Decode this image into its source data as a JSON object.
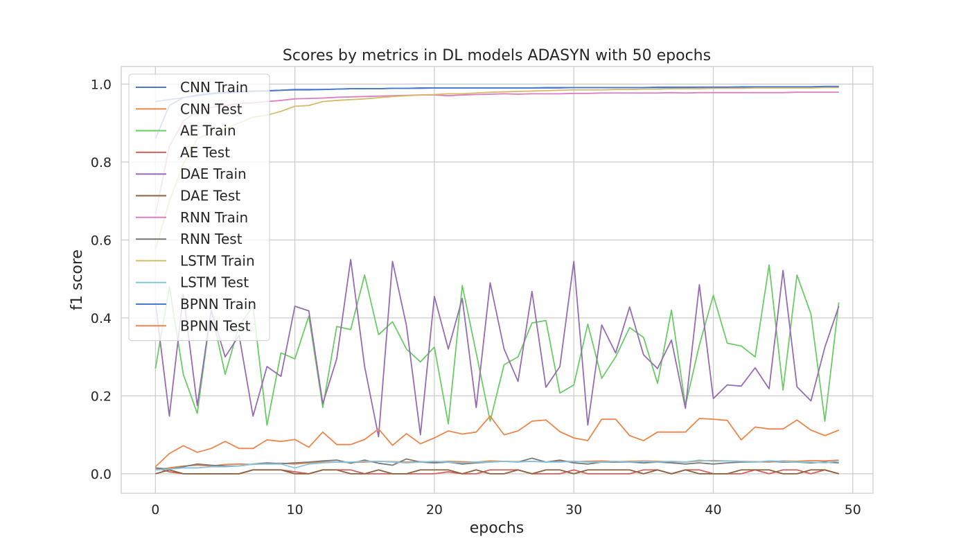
{
  "chart_data": {
    "type": "line",
    "title": "Scores by metrics in DL models ADASYN with 50 epochs",
    "xlabel": "epochs",
    "ylabel": "f1 score",
    "xlim": [
      -2.45,
      51.45
    ],
    "ylim": [
      -0.05,
      1.045
    ],
    "xticks": [
      0,
      10,
      20,
      30,
      40,
      50
    ],
    "xtick_labels": [
      "0",
      "10",
      "20",
      "30",
      "40",
      "50"
    ],
    "yticks": [
      0.0,
      0.2,
      0.4,
      0.6,
      0.8,
      1.0
    ],
    "ytick_labels": [
      "0.0",
      "0.2",
      "0.4",
      "0.6",
      "0.8",
      "1.0"
    ],
    "grid": true,
    "legend_position": "upper-left",
    "x": [
      0,
      1,
      2,
      3,
      4,
      5,
      6,
      7,
      8,
      9,
      10,
      11,
      12,
      13,
      14,
      15,
      16,
      17,
      18,
      19,
      20,
      21,
      22,
      23,
      24,
      25,
      26,
      27,
      28,
      29,
      30,
      31,
      32,
      33,
      34,
      35,
      36,
      37,
      38,
      39,
      40,
      41,
      42,
      43,
      44,
      45,
      46,
      47,
      48,
      49
    ],
    "series": [
      {
        "name": "CNN Train",
        "color": "#4878d0",
        "values": [
          0.86,
          0.945,
          0.965,
          0.972,
          0.976,
          0.979,
          0.981,
          0.982,
          0.983,
          0.984,
          0.986,
          0.986,
          0.986,
          0.987,
          0.988,
          0.988,
          0.988,
          0.989,
          0.989,
          0.989,
          0.99,
          0.99,
          0.99,
          0.99,
          0.99,
          0.99,
          0.99,
          0.99,
          0.99,
          0.99,
          0.991,
          0.991,
          0.991,
          0.991,
          0.991,
          0.991,
          0.991,
          0.991,
          0.991,
          0.992,
          0.992,
          0.992,
          0.992,
          0.992,
          0.992,
          0.992,
          0.992,
          0.992,
          0.993,
          0.993
        ]
      },
      {
        "name": "CNN Test",
        "color": "#ee854a",
        "values": [
          0.01,
          0.015,
          0.02,
          0.022,
          0.02,
          0.024,
          0.025,
          0.024,
          0.026,
          0.027,
          0.025,
          0.028,
          0.03,
          0.03,
          0.029,
          0.03,
          0.032,
          0.031,
          0.03,
          0.031,
          0.03,
          0.032,
          0.031,
          0.03,
          0.033,
          0.032,
          0.031,
          0.032,
          0.03,
          0.033,
          0.031,
          0.032,
          0.033,
          0.031,
          0.032,
          0.033,
          0.032,
          0.031,
          0.03,
          0.033,
          0.034,
          0.033,
          0.032,
          0.031,
          0.03,
          0.033,
          0.032,
          0.034,
          0.033,
          0.035
        ]
      },
      {
        "name": "AE Train",
        "color": "#6acc64",
        "values": [
          0.27,
          0.48,
          0.255,
          0.155,
          0.42,
          0.255,
          0.38,
          0.43,
          0.125,
          0.31,
          0.295,
          0.405,
          0.17,
          0.378,
          0.37,
          0.51,
          0.357,
          0.39,
          0.32,
          0.287,
          0.325,
          0.128,
          0.483,
          0.31,
          0.135,
          0.28,
          0.3,
          0.387,
          0.393,
          0.207,
          0.228,
          0.384,
          0.245,
          0.3,
          0.375,
          0.35,
          0.232,
          0.42,
          0.175,
          0.33,
          0.458,
          0.335,
          0.328,
          0.3,
          0.536,
          0.215,
          0.51,
          0.41,
          0.135,
          0.44
        ]
      },
      {
        "name": "AE Test",
        "color": "#d65f5f",
        "values": [
          0.015,
          0.005,
          0.0,
          0.0,
          0.0,
          0.0,
          0.0,
          0.01,
          0.01,
          0.01,
          0.005,
          0.0,
          0.01,
          0.01,
          0.01,
          0.0,
          0.0,
          0.0,
          0.0,
          0.0,
          0.0,
          0.005,
          0.0,
          0.0,
          0.01,
          0.01,
          0.01,
          0.0,
          0.0,
          0.0,
          0.01,
          0.0,
          0.0,
          0.0,
          0.0,
          0.01,
          0.01,
          0.0,
          0.01,
          0.01,
          0.0,
          0.0,
          0.0,
          0.01,
          0.0,
          0.01,
          0.01,
          0.0,
          0.01,
          0.0
        ]
      },
      {
        "name": "DAE Train",
        "color": "#956cb4",
        "values": [
          0.44,
          0.148,
          0.46,
          0.175,
          0.42,
          0.3,
          0.355,
          0.148,
          0.275,
          0.25,
          0.43,
          0.418,
          0.18,
          0.295,
          0.55,
          0.275,
          0.095,
          0.545,
          0.38,
          0.1,
          0.455,
          0.32,
          0.45,
          0.17,
          0.49,
          0.32,
          0.237,
          0.468,
          0.222,
          0.275,
          0.545,
          0.125,
          0.382,
          0.31,
          0.428,
          0.305,
          0.27,
          0.343,
          0.168,
          0.485,
          0.193,
          0.228,
          0.225,
          0.272,
          0.218,
          0.522,
          0.223,
          0.187,
          0.325,
          0.43
        ]
      },
      {
        "name": "DAE Test",
        "color": "#8c613c",
        "values": [
          0.0,
          0.01,
          0.0,
          0.0,
          0.0,
          0.0,
          0.0,
          0.01,
          0.01,
          0.01,
          0.0,
          0.0,
          0.01,
          0.01,
          0.0,
          0.0,
          0.01,
          0.0,
          0.0,
          0.01,
          0.01,
          0.01,
          0.0,
          0.01,
          0.0,
          0.0,
          0.01,
          0.0,
          0.01,
          0.01,
          0.0,
          0.01,
          0.01,
          0.01,
          0.01,
          0.0,
          0.01,
          0.0,
          0.01,
          0.0,
          0.0,
          0.0,
          0.01,
          0.01,
          0.01,
          0.0,
          0.0,
          0.01,
          0.01,
          0.0
        ]
      },
      {
        "name": "RNN Train",
        "color": "#dc7ec0",
        "values": [
          0.665,
          0.84,
          0.905,
          0.93,
          0.94,
          0.945,
          0.95,
          0.952,
          0.955,
          0.958,
          0.962,
          0.963,
          0.964,
          0.966,
          0.967,
          0.968,
          0.969,
          0.97,
          0.971,
          0.972,
          0.972,
          0.97,
          0.972,
          0.973,
          0.974,
          0.975,
          0.974,
          0.975,
          0.975,
          0.975,
          0.976,
          0.976,
          0.977,
          0.977,
          0.977,
          0.977,
          0.977,
          0.978,
          0.977,
          0.978,
          0.978,
          0.978,
          0.978,
          0.978,
          0.978,
          0.978,
          0.979,
          0.979,
          0.979,
          0.979
        ]
      },
      {
        "name": "RNN Test",
        "color": "#797979",
        "values": [
          0.015,
          0.012,
          0.018,
          0.025,
          0.022,
          0.02,
          0.02,
          0.025,
          0.028,
          0.026,
          0.028,
          0.03,
          0.033,
          0.035,
          0.027,
          0.035,
          0.027,
          0.022,
          0.038,
          0.03,
          0.028,
          0.03,
          0.025,
          0.028,
          0.03,
          0.032,
          0.03,
          0.04,
          0.03,
          0.035,
          0.028,
          0.025,
          0.03,
          0.03,
          0.03,
          0.028,
          0.03,
          0.028,
          0.025,
          0.028,
          0.025,
          0.028,
          0.03,
          0.03,
          0.032,
          0.03,
          0.03,
          0.028,
          0.03,
          0.028
        ]
      },
      {
        "name": "LSTM Train",
        "color": "#d5bb67",
        "values": [
          0.575,
          0.7,
          0.795,
          0.86,
          0.875,
          0.885,
          0.9,
          0.915,
          0.92,
          0.93,
          0.943,
          0.945,
          0.955,
          0.958,
          0.96,
          0.962,
          0.965,
          0.968,
          0.97,
          0.972,
          0.973,
          0.975,
          0.975,
          0.977,
          0.979,
          0.98,
          0.981,
          0.982,
          0.983,
          0.984,
          0.985,
          0.985,
          0.985,
          0.986,
          0.986,
          0.987,
          0.987,
          0.988,
          0.988,
          0.988,
          0.989,
          0.989,
          0.989,
          0.99,
          0.99,
          0.99,
          0.99,
          0.99,
          0.991,
          0.991
        ]
      },
      {
        "name": "LSTM Test",
        "color": "#82c6e2",
        "values": [
          0.01,
          0.012,
          0.015,
          0.015,
          0.018,
          0.018,
          0.02,
          0.025,
          0.025,
          0.025,
          0.015,
          0.025,
          0.028,
          0.03,
          0.03,
          0.032,
          0.032,
          0.03,
          0.028,
          0.03,
          0.032,
          0.03,
          0.028,
          0.03,
          0.03,
          0.032,
          0.03,
          0.032,
          0.03,
          0.03,
          0.032,
          0.03,
          0.03,
          0.032,
          0.03,
          0.032,
          0.03,
          0.032,
          0.03,
          0.035,
          0.032,
          0.033,
          0.032,
          0.03,
          0.033,
          0.032,
          0.03,
          0.03,
          0.028,
          0.033
        ]
      },
      {
        "name": "BPNN Train",
        "color": "#4878d0",
        "values": [
          0.955,
          0.96,
          0.965,
          0.97,
          0.975,
          0.977,
          0.979,
          0.981,
          0.982,
          0.984,
          0.985,
          0.985,
          0.986,
          0.987,
          0.988,
          0.988,
          0.988,
          0.989,
          0.989,
          0.99,
          0.99,
          0.99,
          0.99,
          0.99,
          0.99,
          0.99,
          0.99,
          0.99,
          0.991,
          0.991,
          0.991,
          0.991,
          0.991,
          0.991,
          0.991,
          0.991,
          0.992,
          0.992,
          0.992,
          0.992,
          0.992,
          0.992,
          0.993,
          0.993,
          0.993,
          0.993,
          0.993,
          0.993,
          0.994,
          0.994
        ]
      },
      {
        "name": "BPNN Test",
        "color": "#ee854a",
        "values": [
          0.018,
          0.052,
          0.072,
          0.055,
          0.065,
          0.083,
          0.065,
          0.065,
          0.087,
          0.083,
          0.088,
          0.068,
          0.107,
          0.075,
          0.075,
          0.088,
          0.115,
          0.073,
          0.103,
          0.077,
          0.092,
          0.11,
          0.102,
          0.107,
          0.148,
          0.1,
          0.11,
          0.135,
          0.138,
          0.108,
          0.092,
          0.085,
          0.14,
          0.14,
          0.098,
          0.085,
          0.107,
          0.107,
          0.107,
          0.142,
          0.14,
          0.137,
          0.087,
          0.12,
          0.115,
          0.115,
          0.138,
          0.112,
          0.098,
          0.112
        ]
      }
    ]
  }
}
